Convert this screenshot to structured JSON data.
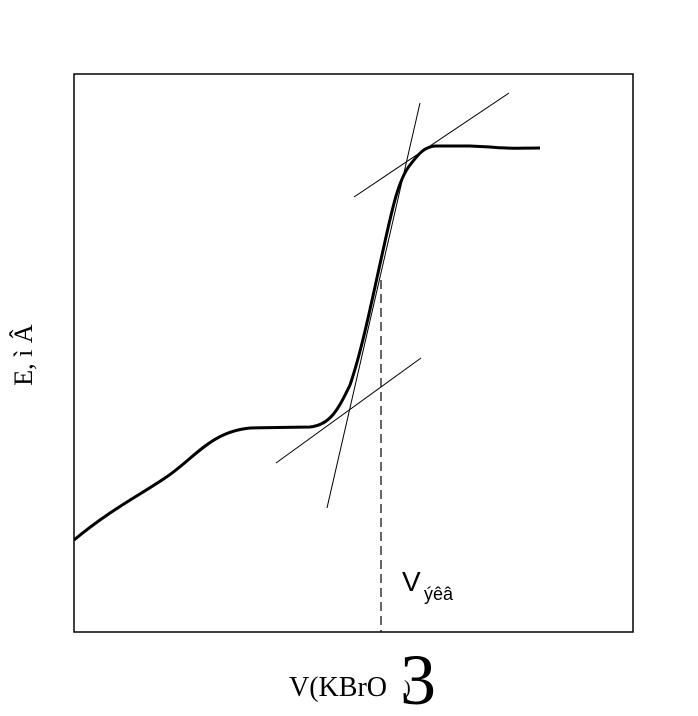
{
  "axes": {
    "y_label": "E, ì Â",
    "x_label": {
      "main": "V(KBrO",
      "subscript": "3",
      "close": ")"
    }
  },
  "annotation": {
    "main": "V",
    "subscript": "ýêâ"
  }
}
